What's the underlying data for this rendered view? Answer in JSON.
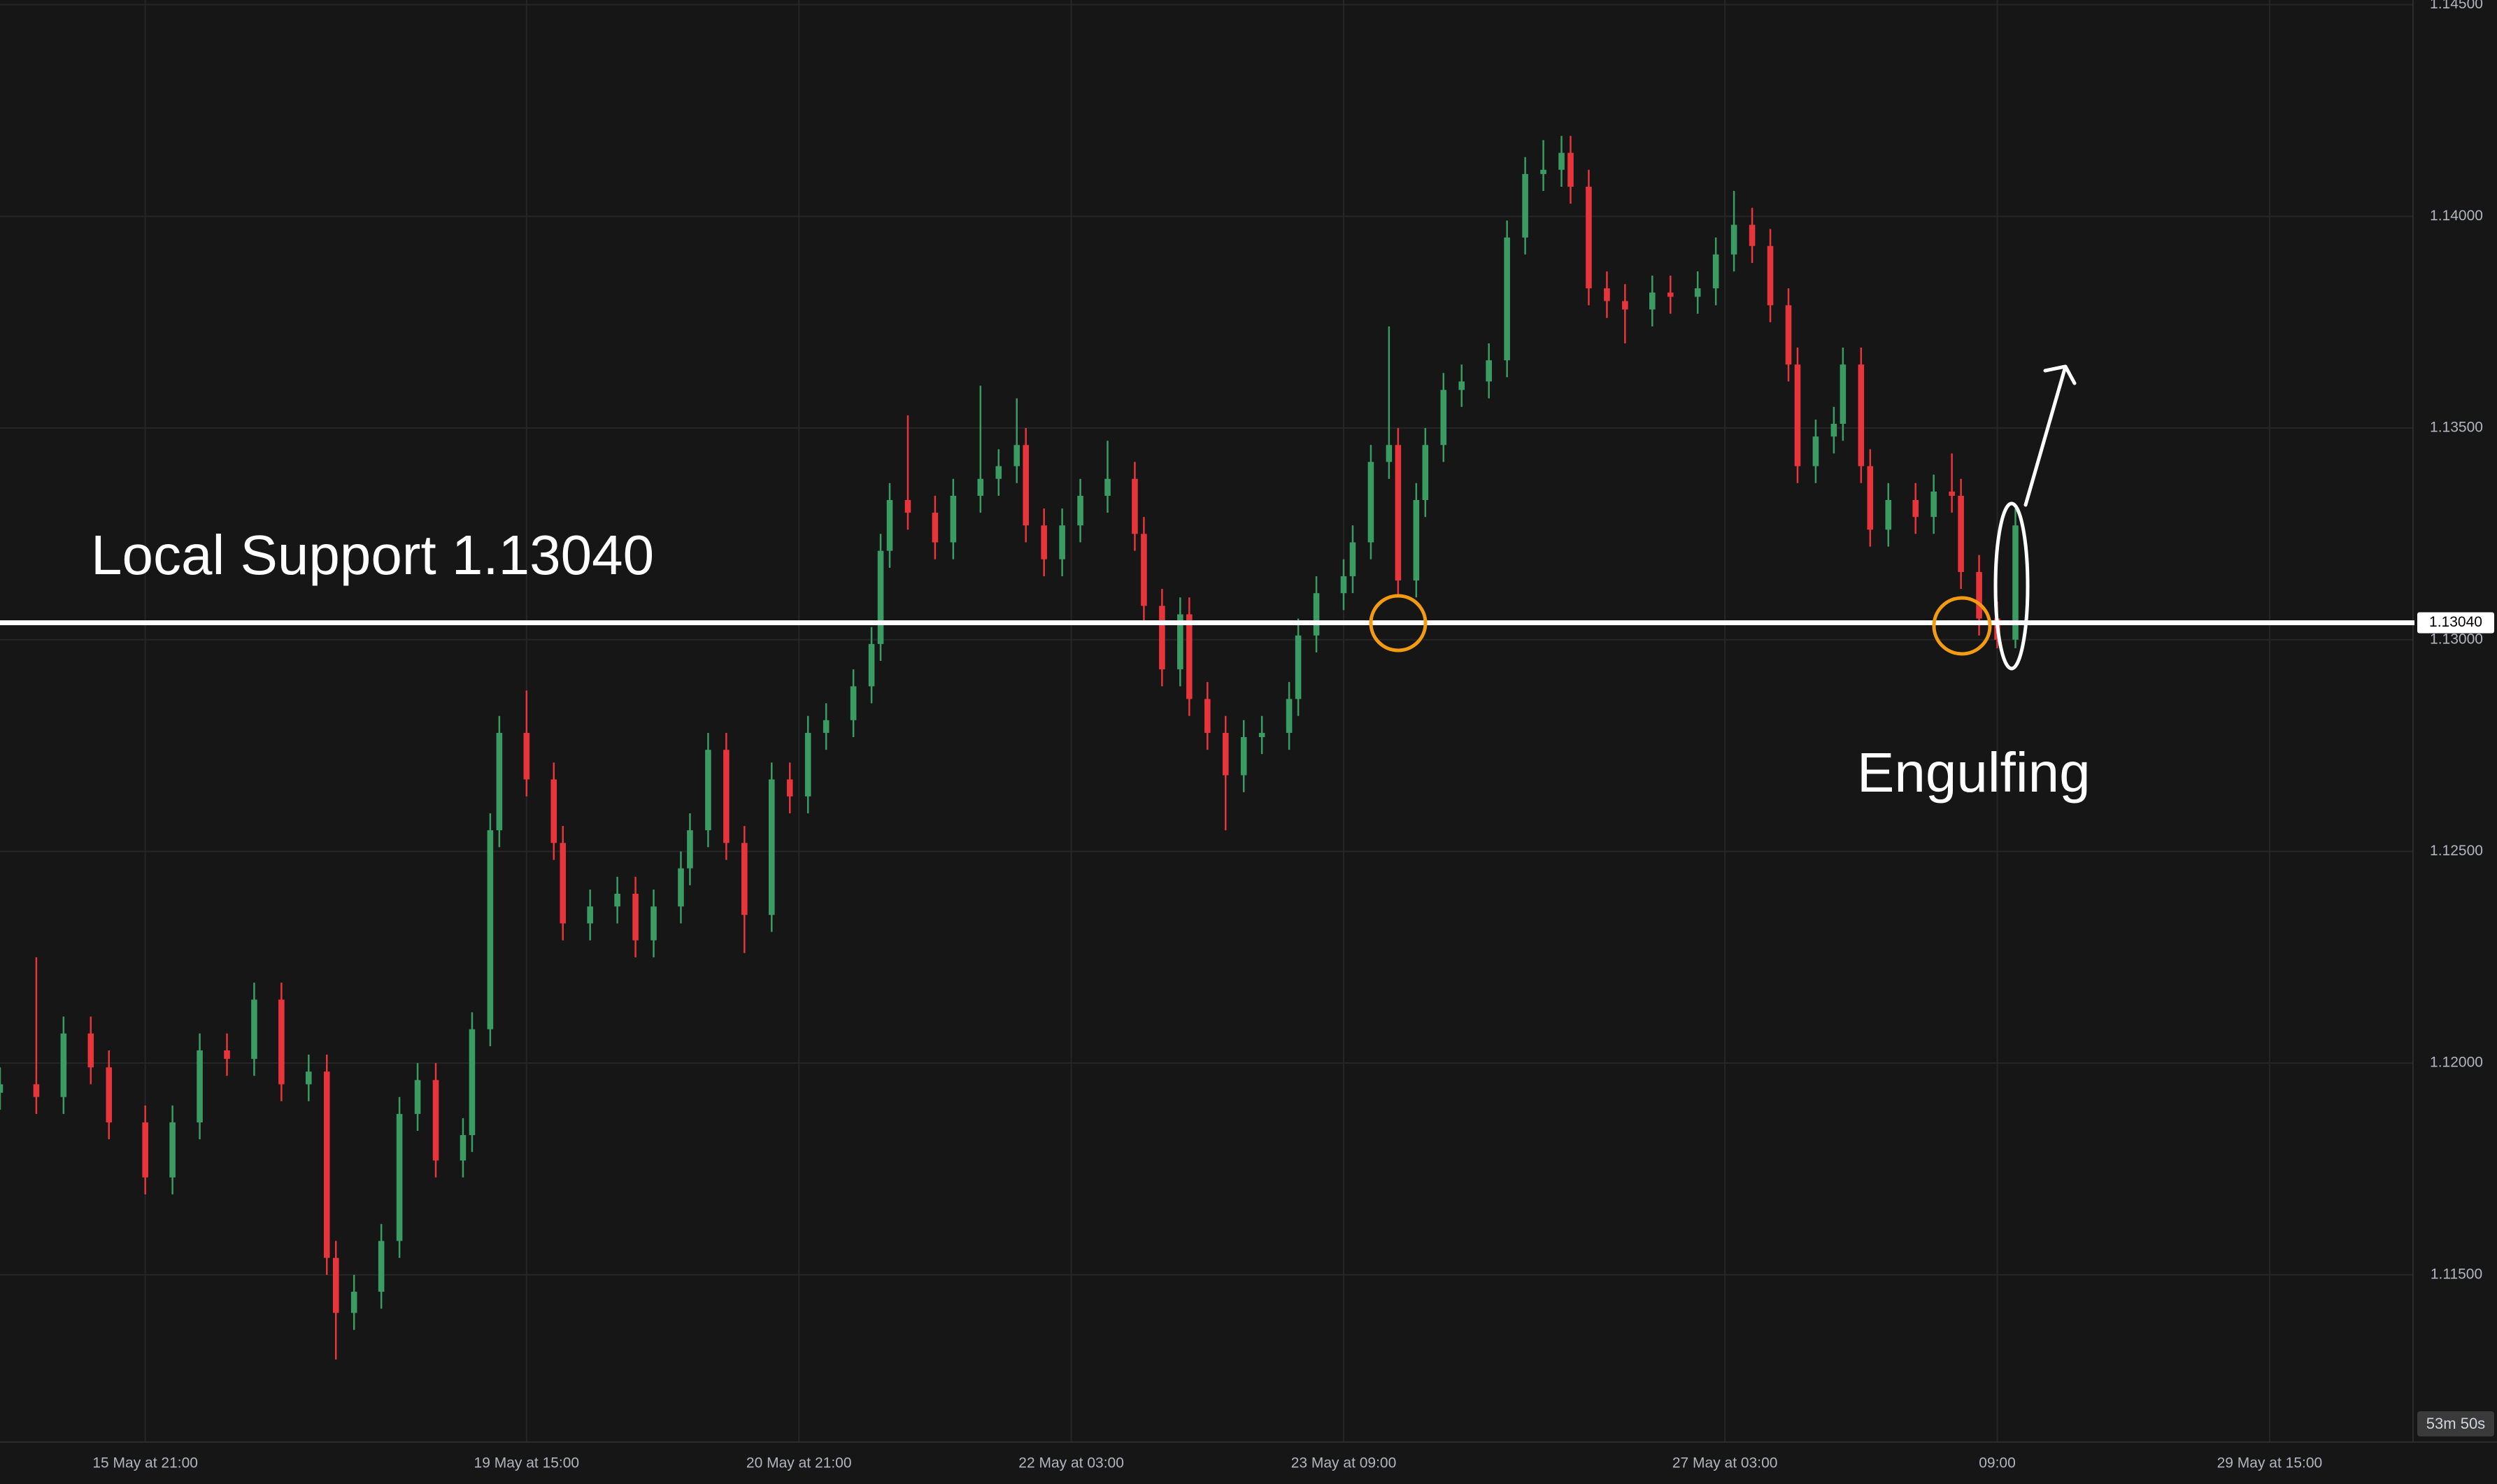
{
  "chart_data": {
    "type": "candlestick",
    "x": [
      0,
      4,
      7,
      10,
      12,
      16,
      19,
      22,
      25,
      28,
      31,
      34,
      36,
      37,
      39,
      42,
      44,
      46,
      48,
      51,
      52,
      54,
      55,
      58,
      61,
      62,
      65,
      68,
      70,
      72,
      75,
      76,
      78,
      80,
      82,
      85,
      87,
      89,
      91,
      94,
      96,
      97,
      98,
      100,
      103,
      105,
      108,
      110,
      112,
      113,
      115,
      117,
      119,
      122,
      125,
      126,
      128,
      130,
      131,
      133,
      135,
      137,
      139,
      142,
      143,
      145,
      148,
      149,
      151,
      153,
      154,
      156,
      157,
      159,
      161,
      164,
      166,
      168,
      170,
      172,
      173,
      175,
      177,
      179,
      182,
      184,
      187,
      189,
      191,
      193,
      195,
      197,
      198,
      200,
      202,
      203,
      205,
      206,
      208,
      211,
      213,
      215,
      216,
      218,
      220,
      222
    ],
    "open": [
      1.1193,
      1.1195,
      1.1192,
      1.1207,
      1.1199,
      1.1186,
      1.1173,
      1.1186,
      1.1203,
      1.1201,
      1.1215,
      1.1195,
      1.1198,
      1.1154,
      1.1141,
      1.1146,
      1.1158,
      1.1188,
      1.1196,
      1.1177,
      1.1183,
      1.1208,
      1.1255,
      1.1278,
      1.1267,
      1.1252,
      1.1233,
      1.1237,
      1.124,
      1.1229,
      1.1237,
      1.1246,
      1.1255,
      1.1274,
      1.1252,
      1.1235,
      1.1267,
      1.1263,
      1.1278,
      1.1281,
      1.1289,
      1.1299,
      1.1321,
      1.1333,
      1.133,
      1.1323,
      1.1334,
      1.1338,
      1.1341,
      1.1346,
      1.1327,
      1.1319,
      1.1327,
      1.1334,
      1.1338,
      1.1325,
      1.1308,
      1.1293,
      1.1306,
      1.1286,
      1.1278,
      1.1268,
      1.1277,
      1.1278,
      1.1286,
      1.1301,
      1.1311,
      1.1315,
      1.1323,
      1.1342,
      1.1346,
      1.1314,
      1.1333,
      1.1346,
      1.1359,
      1.1361,
      1.1366,
      1.1395,
      1.141,
      1.1411,
      1.1415,
      1.1407,
      1.1383,
      1.138,
      1.1378,
      1.1382,
      1.1381,
      1.1383,
      1.1391,
      1.1398,
      1.1393,
      1.1379,
      1.1365,
      1.1341,
      1.1348,
      1.1351,
      1.1365,
      1.1341,
      1.1326,
      1.1333,
      1.1329,
      1.1335,
      1.1334,
      1.1316,
      1.1305,
      1.13
    ],
    "high": [
      1.1199,
      1.1225,
      1.1211,
      1.1211,
      1.1203,
      1.119,
      1.119,
      1.1207,
      1.1207,
      1.1219,
      1.1219,
      1.1202,
      1.1202,
      1.1158,
      1.115,
      1.1162,
      1.1192,
      1.12,
      1.12,
      1.1187,
      1.1212,
      1.1259,
      1.1282,
      1.1288,
      1.1271,
      1.1256,
      1.1241,
      1.1244,
      1.1244,
      1.1241,
      1.125,
      1.1259,
      1.1278,
      1.1278,
      1.1256,
      1.1271,
      1.1271,
      1.1282,
      1.1285,
      1.1293,
      1.1303,
      1.1325,
      1.1337,
      1.1353,
      1.1334,
      1.1338,
      1.136,
      1.1345,
      1.1357,
      1.135,
      1.1331,
      1.1331,
      1.1338,
      1.1347,
      1.1342,
      1.1329,
      1.1312,
      1.131,
      1.131,
      1.129,
      1.1282,
      1.1281,
      1.1282,
      1.129,
      1.1305,
      1.1315,
      1.1319,
      1.1327,
      1.1346,
      1.1374,
      1.135,
      1.1337,
      1.135,
      1.1363,
      1.1365,
      1.137,
      1.1399,
      1.1414,
      1.1418,
      1.1419,
      1.1419,
      1.1411,
      1.1387,
      1.1384,
      1.1386,
      1.1386,
      1.1387,
      1.1395,
      1.1406,
      1.1402,
      1.1397,
      1.1383,
      1.1369,
      1.1352,
      1.1355,
      1.1369,
      1.1369,
      1.1345,
      1.1337,
      1.1337,
      1.1339,
      1.1344,
      1.1338,
      1.132,
      1.1309,
      1.1331
    ],
    "low": [
      1.1189,
      1.1188,
      1.1188,
      1.1195,
      1.1182,
      1.1169,
      1.1169,
      1.1182,
      1.1197,
      1.1197,
      1.1191,
      1.1191,
      1.115,
      1.113,
      1.1137,
      1.1142,
      1.1154,
      1.1184,
      1.1173,
      1.1173,
      1.1179,
      1.1204,
      1.1251,
      1.1263,
      1.1248,
      1.1229,
      1.1229,
      1.1233,
      1.1225,
      1.1225,
      1.1233,
      1.1242,
      1.1251,
      1.1248,
      1.1226,
      1.1231,
      1.1259,
      1.1259,
      1.1274,
      1.1277,
      1.1285,
      1.1295,
      1.1317,
      1.1326,
      1.1319,
      1.1319,
      1.133,
      1.1334,
      1.1337,
      1.1323,
      1.1315,
      1.1315,
      1.1323,
      1.133,
      1.1321,
      1.1304,
      1.1289,
      1.1289,
      1.1282,
      1.1274,
      1.1255,
      1.1264,
      1.1273,
      1.1274,
      1.1282,
      1.1297,
      1.1307,
      1.1311,
      1.1319,
      1.1338,
      1.131,
      1.131,
      1.1329,
      1.1342,
      1.1355,
      1.1357,
      1.1362,
      1.1391,
      1.1406,
      1.1407,
      1.1403,
      1.1379,
      1.1376,
      1.137,
      1.1374,
      1.1377,
      1.1377,
      1.1379,
      1.1387,
      1.1389,
      1.1375,
      1.1361,
      1.1337,
      1.1337,
      1.1344,
      1.1347,
      1.1337,
      1.1322,
      1.1322,
      1.1325,
      1.1325,
      1.133,
      1.1312,
      1.1301,
      1.1298,
      1.1298
    ],
    "close": [
      1.1195,
      1.1192,
      1.1207,
      1.1199,
      1.1186,
      1.1173,
      1.1186,
      1.1203,
      1.1201,
      1.1215,
      1.1195,
      1.1198,
      1.1154,
      1.1141,
      1.1146,
      1.1158,
      1.1188,
      1.1196,
      1.1177,
      1.1183,
      1.1208,
      1.1255,
      1.1278,
      1.1267,
      1.1252,
      1.1233,
      1.1237,
      1.124,
      1.1229,
      1.1237,
      1.1246,
      1.1255,
      1.1274,
      1.1252,
      1.1235,
      1.1267,
      1.1263,
      1.1278,
      1.1281,
      1.1289,
      1.1299,
      1.1321,
      1.1333,
      1.133,
      1.1323,
      1.1334,
      1.1338,
      1.1341,
      1.1346,
      1.1327,
      1.1319,
      1.1327,
      1.1334,
      1.1338,
      1.1325,
      1.1308,
      1.1293,
      1.1306,
      1.1286,
      1.1278,
      1.1268,
      1.1277,
      1.1278,
      1.1286,
      1.1301,
      1.1311,
      1.1315,
      1.1323,
      1.1342,
      1.1346,
      1.1314,
      1.1333,
      1.1346,
      1.1359,
      1.1361,
      1.1366,
      1.1395,
      1.141,
      1.1411,
      1.1415,
      1.1407,
      1.1383,
      1.138,
      1.1378,
      1.1382,
      1.1381,
      1.1383,
      1.1391,
      1.1398,
      1.1393,
      1.1379,
      1.1365,
      1.1341,
      1.1348,
      1.1351,
      1.1365,
      1.1341,
      1.1326,
      1.1333,
      1.1329,
      1.1335,
      1.1334,
      1.1316,
      1.1305,
      1.13,
      1.1327
    ],
    "up_color": "#3b9c63",
    "down_color": "#e8353b",
    "xlim": [
      0,
      265.8
    ],
    "xticks": [
      {
        "value": 16,
        "label": "15 May at 21:00"
      },
      {
        "value": 58,
        "label": "19 May at 15:00"
      },
      {
        "value": 88,
        "label": "20 May at 21:00"
      },
      {
        "value": 118,
        "label": "22 May at 03:00"
      },
      {
        "value": 148,
        "label": "23 May at 09:00"
      },
      {
        "value": 190,
        "label": "27 May at 03:00"
      },
      {
        "value": 220,
        "label": "09:00"
      },
      {
        "value": 250,
        "label": "29 May at 15:00"
      }
    ],
    "ylim": [
      1.11105,
      1.14511
    ],
    "yticks": [
      {
        "value": 1.115,
        "label": "1.11500"
      },
      {
        "value": 1.12,
        "label": "1.12000"
      },
      {
        "value": 1.125,
        "label": "1.12500"
      },
      {
        "value": 1.13,
        "label": "1.13000"
      },
      {
        "value": 1.135,
        "label": "1.13500"
      },
      {
        "value": 1.14,
        "label": "1.14000"
      },
      {
        "value": 1.145,
        "label": "1.14500"
      }
    ],
    "grid": true,
    "support": {
      "value": 1.1304,
      "label": "1.13040"
    },
    "annotations": [
      "Local Support 1.13040",
      "Engulfing"
    ],
    "countdown": "53m 50s"
  }
}
